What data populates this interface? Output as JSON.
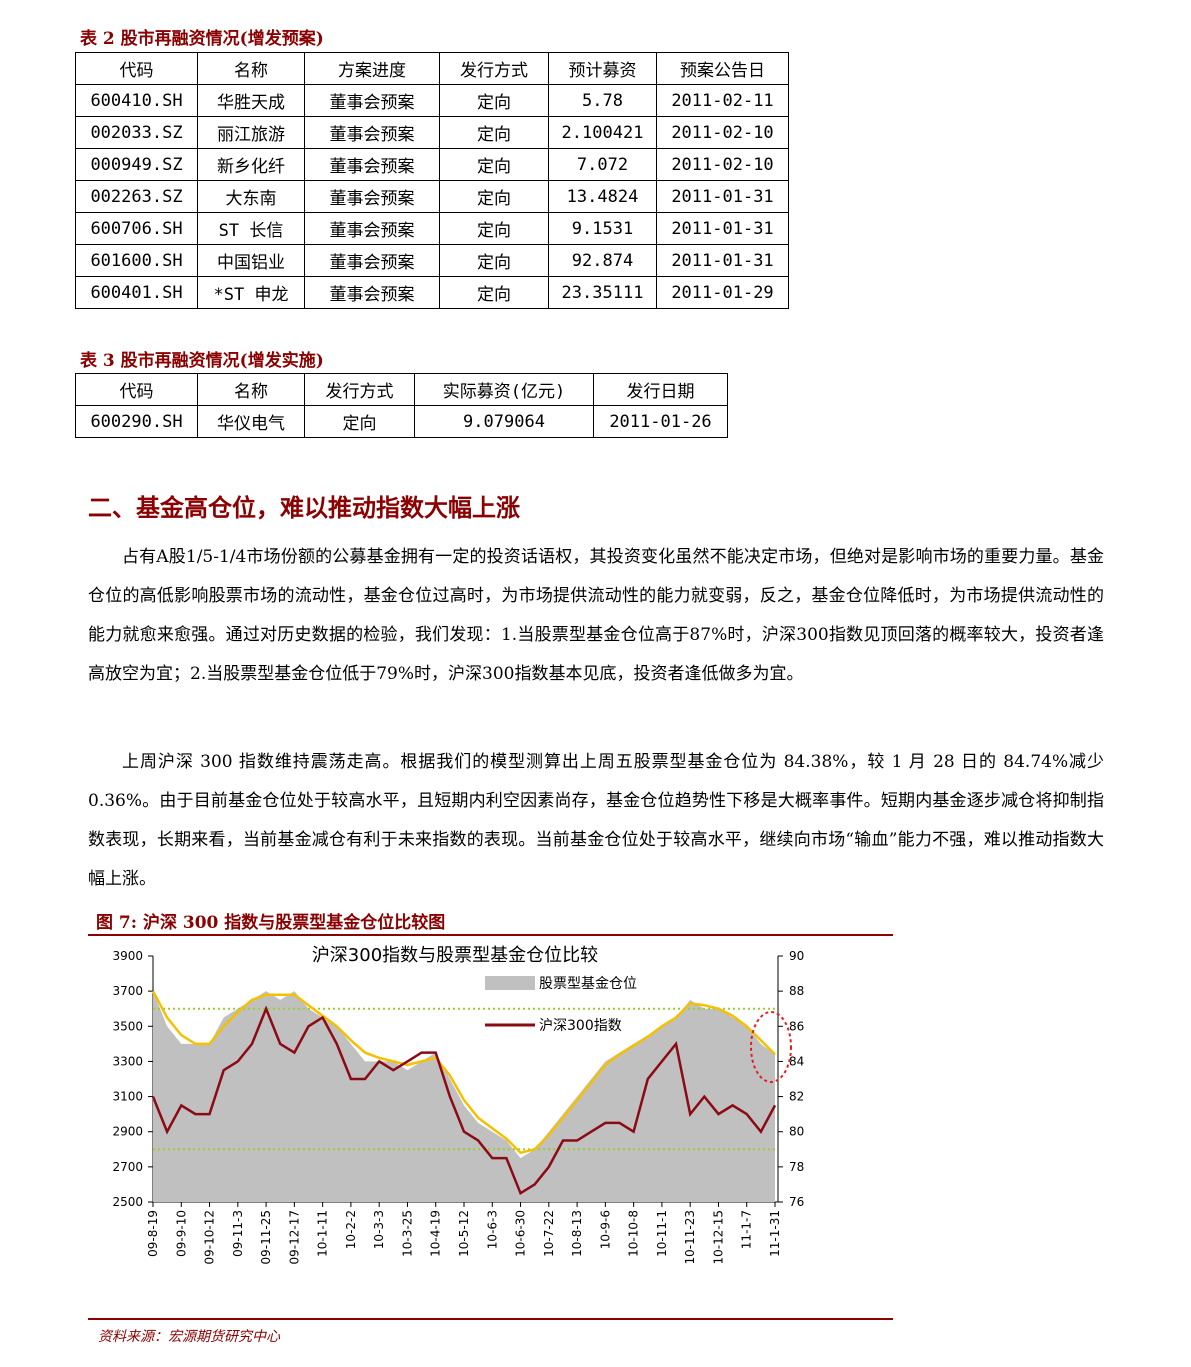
{
  "table2": {
    "title": "表 2 股市再融资情况(增发预案)",
    "header": [
      "代码",
      "名称",
      "方案进度",
      "发行方式",
      "预计募资",
      "预案公告日"
    ],
    "rows": [
      [
        "600410.SH",
        "华胜天成",
        "董事会预案",
        "定向",
        "5.78",
        "2011-02-11"
      ],
      [
        "002033.SZ",
        "丽江旅游",
        "董事会预案",
        "定向",
        "2.100421",
        "2011-02-10"
      ],
      [
        "000949.SZ",
        "新乡化纤",
        "董事会预案",
        "定向",
        "7.072",
        "2011-02-10"
      ],
      [
        "002263.SZ",
        "大东南",
        "董事会预案",
        "定向",
        "13.4824",
        "2011-01-31"
      ],
      [
        "600706.SH",
        "ST 长信",
        "董事会预案",
        "定向",
        "9.1531",
        "2011-01-31"
      ],
      [
        "601600.SH",
        "中国铝业",
        "董事会预案",
        "定向",
        "92.874",
        "2011-01-31"
      ],
      [
        "600401.SH",
        "*ST 申龙",
        "董事会预案",
        "定向",
        "23.35111",
        "2011-01-29"
      ]
    ]
  },
  "table3": {
    "title": "表 3 股市再融资情况(增发实施)",
    "header": [
      "代码",
      "名称",
      "发行方式",
      "实际募资(亿元)",
      "发行日期"
    ],
    "rows": [
      [
        "600290.SH",
        "华仪电气",
        "定向",
        "9.079064",
        "2011-01-26"
      ]
    ]
  },
  "section": {
    "heading": "二、基金高仓位，难以推动指数大幅上涨",
    "paragraphs": [
      "占有A股1/5-1/4市场份额的公募基金拥有一定的投资话语权，其投资变化虽然不能决定市场，但绝对是影响市场的重要力量。基金仓位的高低影响股票市场的流动性，基金仓位过高时，为市场提供流动性的能力就变弱，反之，基金仓位降低时，为市场提供流动性的能力就愈来愈强。通过对历史数据的检验，我们发现：1.当股票型基金仓位高于87%时，沪深300指数见顶回落的概率较大，投资者逢高放空为宜；2.当股票型基金仓位低于79%时，沪深300指数基本见底，投资者逢低做多为宜。",
      "上周沪深 300 指数维持震荡走高。根据我们的模型测算出上周五股票型基金仓位为 84.38%，较 1 月 28 日的 84.74%减少 0.36%。由于目前基金仓位处于较高水平，且短期内利空因素尚存，基金仓位趋势性下移是大概率事件。短期内基金逐步减仓将抑制指数表现，长期来看，当前基金减仓有利于未来指数的表现。当前基金仓位处于较高水平，继续向市场“输血”能力不强，难以推动指数大幅上涨。"
    ]
  },
  "figure": {
    "caption": "图 7:  沪深 300 指数与股票型基金仓位比较图",
    "source": "资料来源：宏源期货研究中心"
  },
  "chart_data": {
    "type": "line",
    "title": "沪深300指数与股票型基金仓位比较",
    "categories": [
      "09-8-19",
      null,
      "09-9-10",
      null,
      "09-10-12",
      null,
      "09-11-3",
      null,
      "09-11-25",
      null,
      "09-12-17",
      null,
      "10-1-11",
      null,
      "10-2-2",
      null,
      "10-3-3",
      null,
      "10-3-25",
      null,
      "10-4-19",
      null,
      "10-5-12",
      null,
      "10-6-3",
      null,
      "10-6-30",
      null,
      "10-7-22",
      null,
      "10-8-13",
      null,
      "10-9-6",
      null,
      "10-10-8",
      null,
      "10-11-1",
      null,
      "10-11-23",
      null,
      "10-12-15",
      null,
      "11-1-7",
      null,
      "11-1-31"
    ],
    "series": [
      {
        "name": "股票型基金仓位",
        "color": "#c0c0c0",
        "kind": "area",
        "axis": "y2",
        "values": [
          88,
          86,
          85,
          85,
          85,
          86.5,
          87,
          87.5,
          88,
          87.5,
          88,
          87,
          86.5,
          86,
          85,
          84,
          84,
          84,
          83.5,
          84,
          84.5,
          83,
          81.5,
          80.5,
          80,
          79.5,
          78.5,
          79,
          80,
          81,
          82,
          83,
          84,
          84.5,
          85,
          85.5,
          86,
          86.5,
          87.5,
          87,
          87,
          86.5,
          86,
          85,
          84.4
        ]
      },
      {
        "color": "#f5c000",
        "axis": "y2",
        "values": [
          88,
          86.5,
          85.5,
          85,
          85,
          86,
          86.8,
          87.5,
          87.8,
          87.8,
          87.8,
          87.2,
          86.6,
          86,
          85.2,
          84.5,
          84.2,
          84,
          83.8,
          84,
          84.2,
          83.2,
          81.8,
          80.8,
          80.2,
          79.6,
          78.8,
          79,
          79.8,
          80.8,
          81.8,
          82.8,
          83.8,
          84.4,
          84.9,
          85.4,
          86,
          86.5,
          87.3,
          87.2,
          87,
          86.6,
          86,
          85.2,
          84.4
        ]
      },
      {
        "name": "沪深300指数",
        "color": "#8b0a14",
        "values": [
          3100,
          2900,
          3050,
          3000,
          3000,
          3250,
          3300,
          3400,
          3600,
          3400,
          3350,
          3500,
          3550,
          3400,
          3200,
          3200,
          3300,
          3250,
          3300,
          3350,
          3350,
          3100,
          2900,
          2850,
          2750,
          2750,
          2550,
          2600,
          2700,
          2850,
          2850,
          2900,
          2950,
          2950,
          2900,
          3200,
          3300,
          3400,
          3000,
          3100,
          3000,
          3050,
          3000,
          2900,
          3050
        ]
      }
    ],
    "ylim": [
      2500,
      3900
    ],
    "yticks": [
      2500,
      2700,
      2900,
      3100,
      3300,
      3500,
      3700,
      3900
    ],
    "y2lim": [
      76,
      90
    ],
    "y2ticks": [
      76,
      78,
      80,
      82,
      84,
      86,
      88,
      90
    ],
    "reference_lines": [
      87,
      79
    ],
    "reference_color": "#9acd32"
  }
}
